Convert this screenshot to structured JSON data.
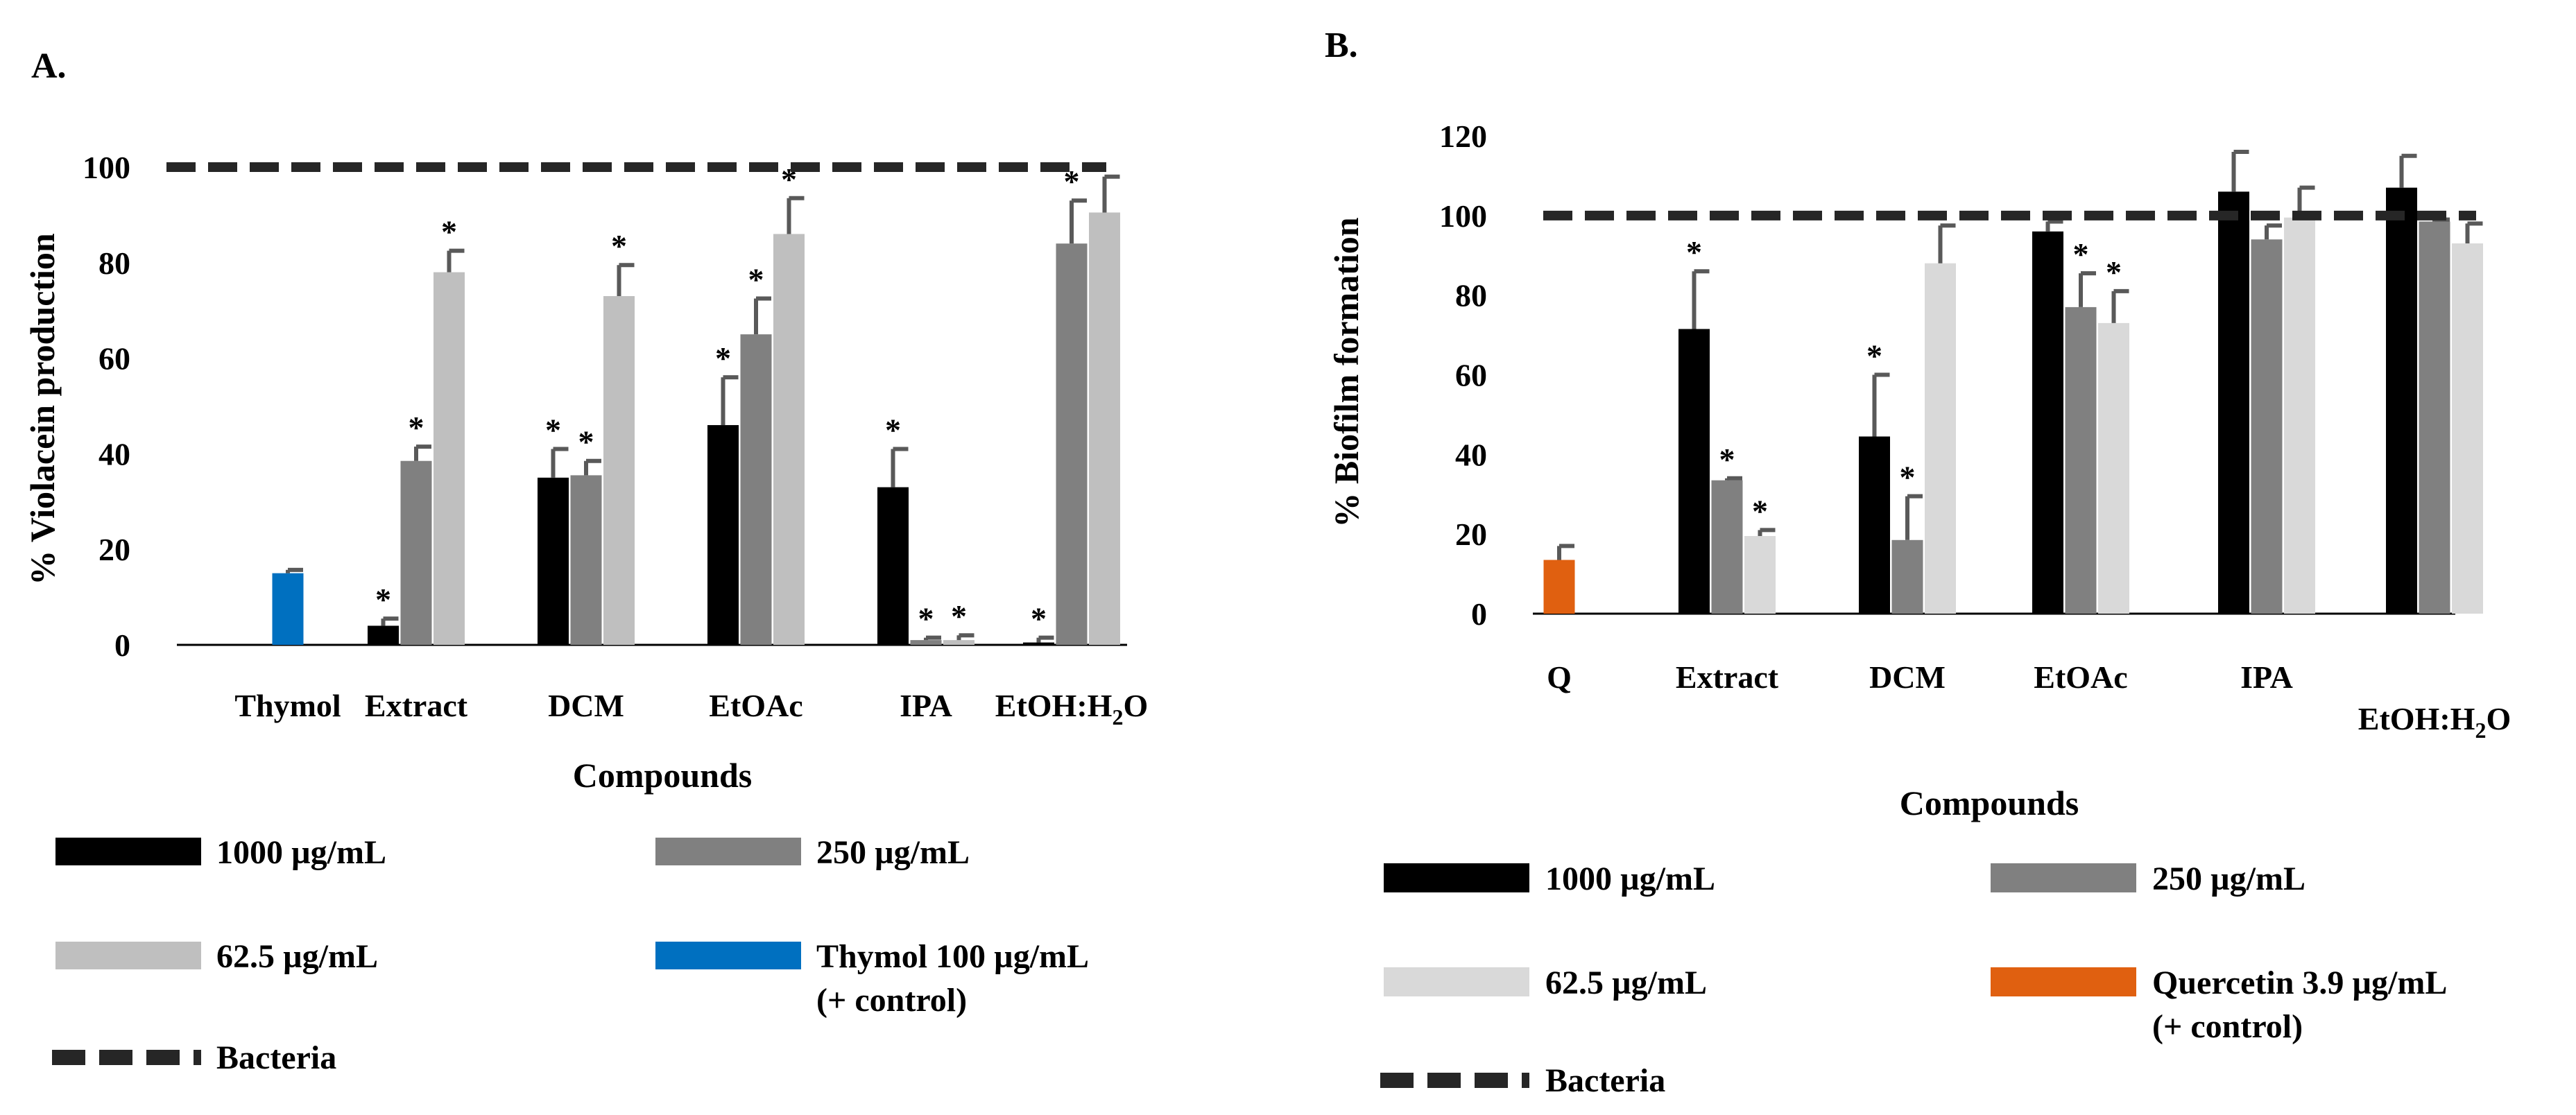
{
  "chart_data": [
    {
      "panel_label": "A.",
      "type": "bar",
      "ylabel": "% Violacein production",
      "xlabel": "Compounds",
      "ylim": [
        0,
        100
      ],
      "yticks": [
        "0",
        "20",
        "40",
        "60",
        "80",
        "100"
      ],
      "categories": [
        "Thymol",
        "Extract",
        "DCM",
        "EtOAc",
        "IPA",
        "EtOH:H2O"
      ],
      "series": [
        {
          "name": "1000 µg/mL",
          "color": "#000000",
          "values": [
            null,
            4,
            35,
            46,
            33,
            0.5
          ],
          "errors": [
            0,
            1.5,
            6,
            10,
            8,
            1
          ],
          "sig": [
            false,
            true,
            true,
            true,
            true,
            true
          ]
        },
        {
          "name": "250 µg/mL",
          "color": "#808080",
          "values": [
            null,
            38.5,
            35.5,
            65,
            1,
            84
          ],
          "errors": [
            0,
            3,
            3,
            7.5,
            0.5,
            9
          ],
          "sig": [
            false,
            true,
            true,
            true,
            true,
            true
          ]
        },
        {
          "name": "62.5 µg/mL",
          "color": "#bfbfbf",
          "values": [
            null,
            78,
            73,
            86,
            1,
            90.5
          ],
          "errors": [
            0,
            4.5,
            6.5,
            7.5,
            1,
            7.5
          ],
          "sig": [
            false,
            true,
            true,
            true,
            true,
            false
          ]
        },
        {
          "name": "Thymol 100 µg/mL",
          "name2": "(+ control)",
          "color": "#0070c0",
          "values": [
            15,
            null,
            null,
            null,
            null,
            null
          ],
          "errors": [
            0.7,
            0,
            0,
            0,
            0,
            0
          ],
          "sig": [
            false,
            false,
            false,
            false,
            false,
            false
          ]
        }
      ],
      "reference_line": {
        "name": "Bacteria",
        "value": 100
      }
    },
    {
      "panel_label": "B.",
      "type": "bar",
      "ylabel": "% Biofilm formation",
      "xlabel": "Compounds",
      "ylim": [
        0,
        120
      ],
      "yticks": [
        "0",
        "20",
        "40",
        "60",
        "80",
        "100",
        "120"
      ],
      "categories": [
        "Q",
        "Extract",
        "DCM",
        "EtOAc",
        "IPA",
        "EtOH:H2O"
      ],
      "series": [
        {
          "name": "1000  µg/mL",
          "color": "#000000",
          "values": [
            null,
            71.5,
            44.5,
            96,
            106,
            107
          ],
          "errors": [
            0,
            14.5,
            15.5,
            2.5,
            10,
            8
          ],
          "sig": [
            false,
            true,
            true,
            false,
            false,
            false
          ]
        },
        {
          "name": "250  µg/mL",
          "color": "#808080",
          "values": [
            null,
            33.5,
            18.5,
            77,
            94,
            98.5
          ],
          "errors": [
            0,
            0.5,
            11,
            8.5,
            3.5,
            0.5
          ],
          "sig": [
            false,
            true,
            true,
            true,
            false,
            false
          ]
        },
        {
          "name": "62.5 µg/mL",
          "color": "#d9d9d9",
          "values": [
            null,
            19.5,
            88,
            73,
            99.5,
            93
          ],
          "errors": [
            0,
            1.5,
            9.5,
            8,
            7.5,
            5
          ],
          "sig": [
            false,
            true,
            false,
            true,
            false,
            false
          ]
        },
        {
          "name": "Quercetin 3.9  µg/mL",
          "name2": "(+ control)",
          "color": "#e06010",
          "values": [
            13.5,
            null,
            null,
            null,
            null,
            null
          ],
          "errors": [
            3.5,
            0,
            0,
            0,
            0,
            0
          ],
          "sig": [
            false,
            false,
            false,
            false,
            false,
            false
          ]
        }
      ],
      "reference_line": {
        "name": "Bacteria",
        "value": 100
      }
    }
  ]
}
